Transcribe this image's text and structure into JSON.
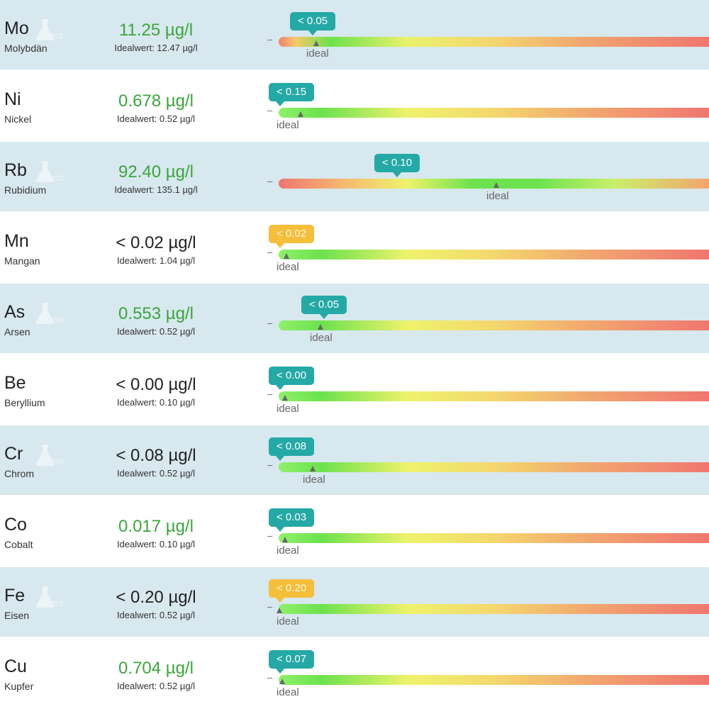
{
  "colors": {
    "row_shaded": "#d7e8ee",
    "value_ok": "#3aa63a",
    "value_neutral": "#222222",
    "bubble_teal": "#25a9a6",
    "bubble_amber": "#f5be3b"
  },
  "icon": "ms-flask-icon",
  "icon_text": "ms",
  "ideal_word": "ideal",
  "dash_symbol": "–",
  "elements": [
    {
      "symbol": "Mo",
      "name": "Molybdän",
      "value": "11.25 µg/l",
      "ideal": "Idealwert: 12.47 µg/l",
      "status": "ok",
      "bubble": "< 0.05",
      "bubble_color": "teal",
      "gradient": "mo"
    },
    {
      "symbol": "Ni",
      "name": "Nickel",
      "value": "0.678 µg/l",
      "ideal": "Idealwert: 0.52 µg/l",
      "status": "ok",
      "bubble": "< 0.15",
      "bubble_color": "teal",
      "gradient": "normal"
    },
    {
      "symbol": "Rb",
      "name": "Rubidium",
      "value": "92.40 µg/l",
      "ideal": "Idealwert: 135.1 µg/l",
      "status": "ok",
      "bubble": "< 0.10",
      "bubble_color": "teal",
      "gradient": "rb"
    },
    {
      "symbol": "Mn",
      "name": "Mangan",
      "value": "< 0.02 µg/l",
      "ideal": "Idealwert: 1.04 µg/l",
      "status": "neutral",
      "bubble": "< 0.02",
      "bubble_color": "amber",
      "gradient": "normal"
    },
    {
      "symbol": "As",
      "name": "Arsen",
      "value": "0.553 µg/l",
      "ideal": "Idealwert: 0.52 µg/l",
      "status": "ok",
      "bubble": "< 0.05",
      "bubble_color": "teal",
      "gradient": "normal"
    },
    {
      "symbol": "Be",
      "name": "Beryllium",
      "value": "< 0.00 µg/l",
      "ideal": "Idealwert: 0.10 µg/l",
      "status": "neutral",
      "bubble": "< 0.00",
      "bubble_color": "teal",
      "gradient": "normal"
    },
    {
      "symbol": "Cr",
      "name": "Chrom",
      "value": "< 0.08 µg/l",
      "ideal": "Idealwert: 0.52 µg/l",
      "status": "neutral",
      "bubble": "< 0.08",
      "bubble_color": "teal",
      "gradient": "normal"
    },
    {
      "symbol": "Co",
      "name": "Cobalt",
      "value": "0.017 µg/l",
      "ideal": "Idealwert: 0.10 µg/l",
      "status": "ok",
      "bubble": "< 0.03",
      "bubble_color": "teal",
      "gradient": "normal"
    },
    {
      "symbol": "Fe",
      "name": "Eisen",
      "value": "< 0.20 µg/l",
      "ideal": "Idealwert: 0.52 µg/l",
      "status": "neutral",
      "bubble": "< 0.20",
      "bubble_color": "amber",
      "gradient": "normal"
    },
    {
      "symbol": "Cu",
      "name": "Kupfer",
      "value": "0.704 µg/l",
      "ideal": "Idealwert: 0.52 µg/l",
      "status": "ok",
      "bubble": "< 0.07",
      "bubble_color": "teal",
      "gradient": "normal"
    }
  ]
}
